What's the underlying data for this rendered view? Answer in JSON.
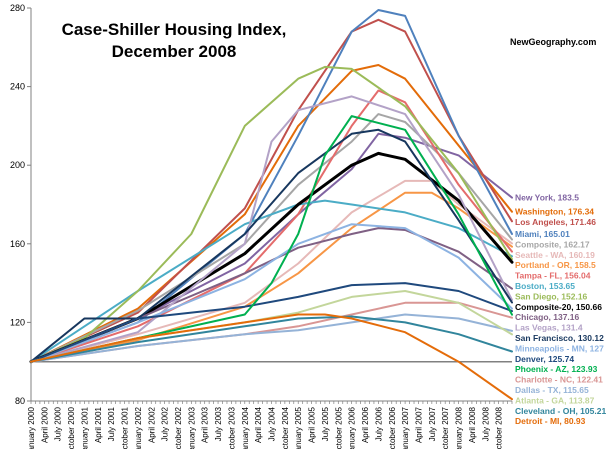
{
  "title_line1": "Case-Shiller Housing Index,",
  "title_line2": "December 2008",
  "credit": "NewGeography.com",
  "chart_data": {
    "type": "line",
    "title": "Case-Shiller Housing Index, December 2008",
    "ylim": [
      80,
      280
    ],
    "yticks": [
      80,
      120,
      160,
      200,
      240,
      280
    ],
    "grid": false,
    "legend": "right, end-of-line labels",
    "x_ticks": [
      "January 2000",
      "April 2000",
      "July 2000",
      "October 2000",
      "January 2001",
      "April 2001",
      "July 2001",
      "October 2001",
      "January 2002",
      "April 2002",
      "July 2002",
      "October 2002",
      "January 2003",
      "April 2003",
      "July 2003",
      "October 2003",
      "January 2004",
      "April 2004",
      "July 2004",
      "October 2004",
      "January 2005",
      "April 2005",
      "July 2005",
      "October 2005",
      "January 2006",
      "April 2006",
      "July 2006",
      "October 2006",
      "January 2007",
      "April 2007",
      "July 2007",
      "October 2007",
      "January 2008",
      "April 2008",
      "July 2008",
      "October 2008"
    ],
    "x_tick_months": [
      0,
      3,
      6,
      9,
      12,
      15,
      18,
      21,
      24,
      27,
      30,
      33,
      36,
      39,
      42,
      45,
      48,
      51,
      54,
      57,
      60,
      63,
      66,
      69,
      72,
      75,
      78,
      81,
      84,
      87,
      90,
      93,
      96,
      99,
      102,
      105
    ],
    "series": [
      {
        "label": "New York, 183.5",
        "color": "#8064A2",
        "width": 2,
        "points": [
          [
            0,
            100
          ],
          [
            24,
            122
          ],
          [
            48,
            150
          ],
          [
            60,
            175
          ],
          [
            72,
            198
          ],
          [
            78,
            216
          ],
          [
            84,
            214
          ],
          [
            96,
            205
          ],
          [
            108,
            183.5
          ]
        ]
      },
      {
        "label": "Washington, 176.34",
        "color": "#E36C09",
        "width": 2,
        "points": [
          [
            0,
            100
          ],
          [
            24,
            127
          ],
          [
            48,
            175
          ],
          [
            60,
            220
          ],
          [
            72,
            248
          ],
          [
            78,
            251
          ],
          [
            84,
            244
          ],
          [
            96,
            210
          ],
          [
            108,
            176.34
          ]
        ]
      },
      {
        "label": "Los Angeles, 171.46",
        "color": "#C0504D",
        "width": 2,
        "points": [
          [
            0,
            100
          ],
          [
            24,
            125
          ],
          [
            48,
            178
          ],
          [
            60,
            228
          ],
          [
            72,
            268
          ],
          [
            78,
            274
          ],
          [
            84,
            268
          ],
          [
            96,
            215
          ],
          [
            108,
            171.46
          ]
        ]
      },
      {
        "label": "Miami, 165.01",
        "color": "#4F81BD",
        "width": 2,
        "points": [
          [
            0,
            100
          ],
          [
            24,
            120
          ],
          [
            48,
            165
          ],
          [
            60,
            215
          ],
          [
            72,
            268
          ],
          [
            78,
            279
          ],
          [
            84,
            276
          ],
          [
            96,
            215
          ],
          [
            108,
            165.01
          ]
        ]
      },
      {
        "label": "Composite, 162.17",
        "color": "#A6A6A6",
        "width": 2,
        "points": [
          [
            0,
            100
          ],
          [
            24,
            126
          ],
          [
            48,
            160
          ],
          [
            60,
            190
          ],
          [
            72,
            212
          ],
          [
            78,
            226
          ],
          [
            84,
            222
          ],
          [
            96,
            196
          ],
          [
            108,
            162.17
          ]
        ]
      },
      {
        "label": "Seattle - WA, 160.19",
        "color": "#E6B9B8",
        "width": 2,
        "points": [
          [
            0,
            100
          ],
          [
            24,
            114
          ],
          [
            48,
            130
          ],
          [
            60,
            150
          ],
          [
            72,
            176
          ],
          [
            84,
            192
          ],
          [
            90,
            192
          ],
          [
            96,
            180
          ],
          [
            108,
            160.19
          ]
        ]
      },
      {
        "label": "Portland - OR, 158.5",
        "color": "#F79646",
        "width": 2,
        "points": [
          [
            0,
            100
          ],
          [
            24,
            111
          ],
          [
            48,
            128
          ],
          [
            60,
            145
          ],
          [
            72,
            168
          ],
          [
            84,
            186
          ],
          [
            90,
            186
          ],
          [
            96,
            178
          ],
          [
            108,
            158.5
          ]
        ]
      },
      {
        "label": "Tampa - FL, 156.04",
        "color": "#E46C6C",
        "width": 2,
        "points": [
          [
            0,
            100
          ],
          [
            24,
            118
          ],
          [
            48,
            145
          ],
          [
            60,
            175
          ],
          [
            72,
            220
          ],
          [
            78,
            238
          ],
          [
            84,
            232
          ],
          [
            96,
            190
          ],
          [
            108,
            156.04
          ]
        ]
      },
      {
        "label": "Boston, 153.65",
        "color": "#4BACC6",
        "width": 2,
        "points": [
          [
            0,
            100
          ],
          [
            24,
            136
          ],
          [
            48,
            170
          ],
          [
            60,
            180
          ],
          [
            66,
            182
          ],
          [
            72,
            180
          ],
          [
            84,
            176
          ],
          [
            96,
            168
          ],
          [
            108,
            153.65
          ]
        ]
      },
      {
        "label": "San Diego, 152.16",
        "color": "#9BBB59",
        "width": 2,
        "points": [
          [
            0,
            100
          ],
          [
            12,
            112
          ],
          [
            24,
            136
          ],
          [
            36,
            165
          ],
          [
            48,
            220
          ],
          [
            60,
            244
          ],
          [
            66,
            250
          ],
          [
            72,
            249
          ],
          [
            84,
            230
          ],
          [
            96,
            196
          ],
          [
            108,
            152.16
          ]
        ]
      },
      {
        "label": "Composite-20, 150.66",
        "color": "#000000",
        "width": 3,
        "points": [
          [
            0,
            100
          ],
          [
            24,
            122
          ],
          [
            48,
            155
          ],
          [
            60,
            180
          ],
          [
            72,
            200
          ],
          [
            78,
            206
          ],
          [
            84,
            203
          ],
          [
            96,
            182
          ],
          [
            108,
            150.66
          ]
        ]
      },
      {
        "label": "Chicago, 137.16",
        "color": "#7F6084",
        "width": 2,
        "points": [
          [
            0,
            100
          ],
          [
            24,
            122
          ],
          [
            48,
            145
          ],
          [
            60,
            158
          ],
          [
            72,
            165
          ],
          [
            78,
            168
          ],
          [
            84,
            167
          ],
          [
            96,
            156
          ],
          [
            108,
            137.16
          ]
        ]
      },
      {
        "label": "Las Vegas, 131.4",
        "color": "#B3A2C7",
        "width": 2,
        "points": [
          [
            0,
            100
          ],
          [
            24,
            115
          ],
          [
            48,
            160
          ],
          [
            54,
            212
          ],
          [
            60,
            228
          ],
          [
            72,
            235
          ],
          [
            84,
            226
          ],
          [
            96,
            185
          ],
          [
            108,
            131.4
          ]
        ]
      },
      {
        "label": "San Francisco, 130.12",
        "color": "#17375E",
        "width": 2,
        "points": [
          [
            0,
            100
          ],
          [
            12,
            122
          ],
          [
            24,
            122
          ],
          [
            48,
            165
          ],
          [
            60,
            196
          ],
          [
            72,
            216
          ],
          [
            78,
            218
          ],
          [
            84,
            212
          ],
          [
            96,
            172
          ],
          [
            108,
            130.12
          ]
        ]
      },
      {
        "label": "Minneapolis - MN, 127",
        "color": "#8DB3E2",
        "width": 2,
        "points": [
          [
            0,
            100
          ],
          [
            24,
            120
          ],
          [
            48,
            142
          ],
          [
            60,
            160
          ],
          [
            72,
            170
          ],
          [
            84,
            168
          ],
          [
            96,
            153
          ],
          [
            108,
            127
          ]
        ]
      },
      {
        "label": "Denver, 125.74",
        "color": "#1F497D",
        "width": 2,
        "points": [
          [
            0,
            100
          ],
          [
            24,
            122
          ],
          [
            48,
            128
          ],
          [
            60,
            133
          ],
          [
            72,
            139
          ],
          [
            84,
            140
          ],
          [
            96,
            136
          ],
          [
            108,
            125.74
          ]
        ]
      },
      {
        "label": "Phoenix - AZ, 123.93",
        "color": "#00B050",
        "width": 2,
        "points": [
          [
            0,
            100
          ],
          [
            24,
            112
          ],
          [
            48,
            124
          ],
          [
            54,
            140
          ],
          [
            60,
            165
          ],
          [
            66,
            205
          ],
          [
            72,
            225
          ],
          [
            84,
            218
          ],
          [
            96,
            175
          ],
          [
            108,
            123.93
          ]
        ]
      },
      {
        "label": "Charlotte - NC, 122.41",
        "color": "#D99694",
        "width": 2,
        "points": [
          [
            0,
            100
          ],
          [
            24,
            108
          ],
          [
            48,
            114
          ],
          [
            60,
            118
          ],
          [
            72,
            124
          ],
          [
            84,
            130
          ],
          [
            96,
            130
          ],
          [
            108,
            122.41
          ]
        ]
      },
      {
        "label": "Dallas - TX, 115.65",
        "color": "#95B3D7",
        "width": 2,
        "points": [
          [
            0,
            100
          ],
          [
            24,
            108
          ],
          [
            48,
            114
          ],
          [
            60,
            116
          ],
          [
            72,
            120
          ],
          [
            84,
            124
          ],
          [
            96,
            122
          ],
          [
            108,
            115.65
          ]
        ]
      },
      {
        "label": "Atlanta - GA, 113.87",
        "color": "#C3D69B",
        "width": 2,
        "points": [
          [
            0,
            100
          ],
          [
            24,
            112
          ],
          [
            48,
            120
          ],
          [
            60,
            125
          ],
          [
            72,
            133
          ],
          [
            84,
            136
          ],
          [
            96,
            130
          ],
          [
            108,
            113.87
          ]
        ]
      },
      {
        "label": "Cleveland - OH, 105.21",
        "color": "#31859C",
        "width": 2,
        "points": [
          [
            0,
            100
          ],
          [
            24,
            110
          ],
          [
            48,
            118
          ],
          [
            60,
            122
          ],
          [
            72,
            123
          ],
          [
            84,
            120
          ],
          [
            96,
            114
          ],
          [
            108,
            105.21
          ]
        ]
      },
      {
        "label": "Detroit - MI, 80.93",
        "color": "#E46C0A",
        "width": 2,
        "points": [
          [
            0,
            100
          ],
          [
            24,
            112
          ],
          [
            48,
            120
          ],
          [
            60,
            124
          ],
          [
            66,
            124
          ],
          [
            72,
            122
          ],
          [
            84,
            115
          ],
          [
            96,
            100
          ],
          [
            108,
            80.93
          ]
        ]
      }
    ]
  }
}
